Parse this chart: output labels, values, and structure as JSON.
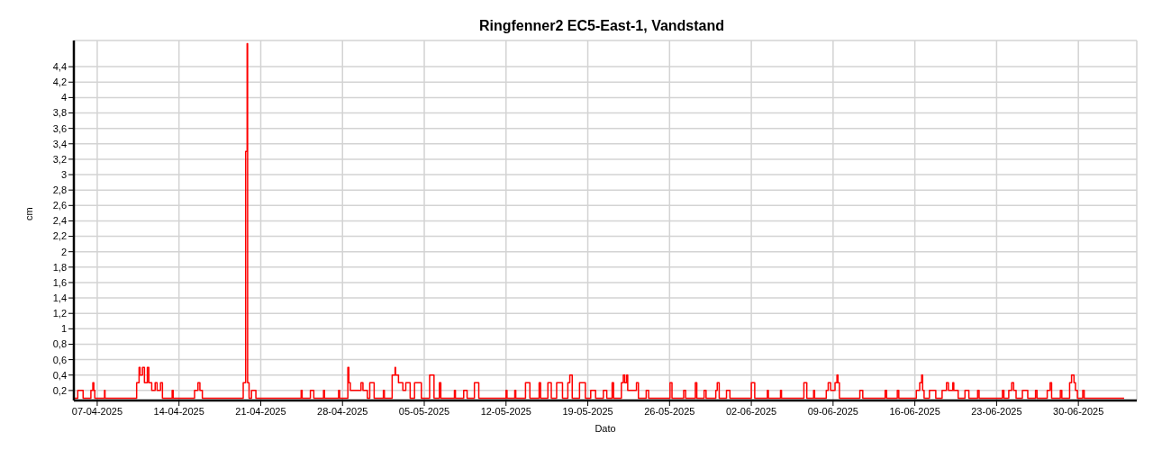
{
  "chart_data": {
    "type": "step",
    "title": "Ringfenner2 EC5-East-1, Vandstand",
    "xlabel": "Dato",
    "ylabel": "cm",
    "grid": true,
    "xlim": [
      "2025-04-05",
      "2025-07-05"
    ],
    "xticks": [
      {
        "value": "2025-04-07",
        "label": "07-04-2025"
      },
      {
        "value": "2025-04-14",
        "label": "14-04-2025"
      },
      {
        "value": "2025-04-21",
        "label": "21-04-2025"
      },
      {
        "value": "2025-04-28",
        "label": "28-04-2025"
      },
      {
        "value": "2025-05-05",
        "label": "05-05-2025"
      },
      {
        "value": "2025-05-12",
        "label": "12-05-2025"
      },
      {
        "value": "2025-05-19",
        "label": "19-05-2025"
      },
      {
        "value": "2025-05-26",
        "label": "26-05-2025"
      },
      {
        "value": "2025-06-02",
        "label": "02-06-2025"
      },
      {
        "value": "2025-06-09",
        "label": "09-06-2025"
      },
      {
        "value": "2025-06-16",
        "label": "16-06-2025"
      },
      {
        "value": "2025-06-23",
        "label": "23-06-2025"
      },
      {
        "value": "2025-06-30",
        "label": "30-06-2025"
      }
    ],
    "ylim": [
      0.07,
      4.74
    ],
    "yticks": [
      {
        "value": 0.2,
        "label": "0,2"
      },
      {
        "value": 0.4,
        "label": "0,4"
      },
      {
        "value": 0.6,
        "label": "0,6"
      },
      {
        "value": 0.8,
        "label": "0,8"
      },
      {
        "value": 1,
        "label": "1"
      },
      {
        "value": 1.2,
        "label": "1,2"
      },
      {
        "value": 1.4,
        "label": "1,4"
      },
      {
        "value": 1.6,
        "label": "1,6"
      },
      {
        "value": 1.8,
        "label": "1,8"
      },
      {
        "value": 2,
        "label": "2"
      },
      {
        "value": 2.2,
        "label": "2,2"
      },
      {
        "value": 2.4,
        "label": "2,4"
      },
      {
        "value": 2.6,
        "label": "2,6"
      },
      {
        "value": 2.8,
        "label": "2,8"
      },
      {
        "value": 3,
        "label": "3"
      },
      {
        "value": 3.2,
        "label": "3,2"
      },
      {
        "value": 3.4,
        "label": "3,4"
      },
      {
        "value": 3.6,
        "label": "3,6"
      },
      {
        "value": 3.8,
        "label": "3,8"
      },
      {
        "value": 4,
        "label": "4"
      },
      {
        "value": 4.2,
        "label": "4,2"
      },
      {
        "value": 4.4,
        "label": "4,4"
      }
    ],
    "series": [
      {
        "color": "#ff0000",
        "x": [
          "2025-04-05T00:00",
          "2025-04-05T08:00",
          "2025-04-05T19:00",
          "2025-04-06T11:00",
          "2025-04-06T15:00",
          "2025-04-06T17:00",
          "2025-04-06T19:00",
          "2025-04-07T15:00",
          "2025-04-07T16:00",
          "2025-04-10T09:00",
          "2025-04-10T14:00",
          "2025-04-10T16:00",
          "2025-04-10T21:00",
          "2025-04-11T01:00",
          "2025-04-11T07:00",
          "2025-04-11T10:00",
          "2025-04-11T16:00",
          "2025-04-11T23:00",
          "2025-04-12T03:00",
          "2025-04-12T10:00",
          "2025-04-12T14:00",
          "2025-04-13T10:00",
          "2025-04-13T12:00",
          "2025-04-15T08:00",
          "2025-04-15T15:00",
          "2025-04-15T19:00",
          "2025-04-16T00:00",
          "2025-04-19T12:00",
          "2025-04-19T17:00",
          "2025-04-19T20:00",
          "2025-04-19T21:00",
          "2025-04-20T00:00",
          "2025-04-20T05:00",
          "2025-04-20T14:00",
          "2025-04-24T11:00",
          "2025-04-24T13:00",
          "2025-04-25T06:00",
          "2025-04-25T13:00",
          "2025-04-26T09:00",
          "2025-04-26T11:00",
          "2025-04-27T16:00",
          "2025-04-27T18:00",
          "2025-04-28T11:00",
          "2025-04-28T13:00",
          "2025-04-28T16:00",
          "2025-04-29T14:00",
          "2025-04-29T18:00",
          "2025-04-30T03:00",
          "2025-04-30T08:00",
          "2025-04-30T17:00",
          "2025-05-01T12:00",
          "2025-05-01T14:00",
          "2025-05-02T06:00",
          "2025-05-02T12:00",
          "2025-05-02T13:00",
          "2025-05-02T19:00",
          "2025-05-03T04:00",
          "2025-05-03T10:00",
          "2025-05-03T19:00",
          "2025-05-04T04:00",
          "2025-05-04T18:00",
          "2025-05-05T11:00",
          "2025-05-05T20:00",
          "2025-05-06T07:00",
          "2025-05-06T10:00",
          "2025-05-07T14:00",
          "2025-05-07T16:00",
          "2025-05-08T09:00",
          "2025-05-08T16:00",
          "2025-05-09T07:00",
          "2025-05-09T16:00",
          "2025-05-12T00:00",
          "2025-05-12T02:00",
          "2025-05-12T18:00",
          "2025-05-12T20:00",
          "2025-05-13T16:00",
          "2025-05-14T01:00",
          "2025-05-14T20:00",
          "2025-05-14T23:00",
          "2025-05-15T14:00",
          "2025-05-15T21:00",
          "2025-05-16T08:00",
          "2025-05-16T20:00",
          "2025-05-17T07:00",
          "2025-05-17T11:00",
          "2025-05-17T16:00",
          "2025-05-18T07:00",
          "2025-05-18T19:00",
          "2025-05-19T06:00",
          "2025-05-19T16:00",
          "2025-05-20T08:00",
          "2025-05-20T15:00",
          "2025-05-21T02:00",
          "2025-05-21T05:00",
          "2025-05-21T21:00",
          "2025-05-22T01:00",
          "2025-05-22T04:00",
          "2025-05-22T08:00",
          "2025-05-22T10:00",
          "2025-05-22T17:00",
          "2025-05-23T04:00",
          "2025-05-23T08:00",
          "2025-05-24T00:00",
          "2025-05-24T05:00",
          "2025-05-26T01:00",
          "2025-05-26T05:00",
          "2025-05-27T05:00",
          "2025-05-27T09:00",
          "2025-05-28T05:00",
          "2025-05-28T08:00",
          "2025-05-28T23:00",
          "2025-05-29T03:00",
          "2025-05-29T23:00",
          "2025-05-30T02:00",
          "2025-05-30T06:00",
          "2025-05-30T21:00",
          "2025-05-31T04:00",
          "2025-06-02T00:00",
          "2025-06-02T07:00",
          "2025-06-03T09:00",
          "2025-06-03T11:00",
          "2025-06-04T12:00",
          "2025-06-04T14:00",
          "2025-06-06T12:00",
          "2025-06-06T18:00",
          "2025-06-07T08:00",
          "2025-06-07T10:00",
          "2025-06-08T10:00",
          "2025-06-08T14:00",
          "2025-06-08T19:00",
          "2025-06-09T04:00",
          "2025-06-09T08:00",
          "2025-06-09T10:00",
          "2025-06-09T13:00",
          "2025-06-11T07:00",
          "2025-06-11T13:00",
          "2025-06-13T11:00",
          "2025-06-13T14:00",
          "2025-06-14T12:00",
          "2025-06-14T15:00",
          "2025-06-16T03:00",
          "2025-06-16T10:00",
          "2025-06-16T14:00",
          "2025-06-16T16:00",
          "2025-06-16T19:00",
          "2025-06-17T06:00",
          "2025-06-17T19:00",
          "2025-06-18T08:00",
          "2025-06-18T17:00",
          "2025-06-18T21:00",
          "2025-06-19T06:00",
          "2025-06-19T08:00",
          "2025-06-19T17:00",
          "2025-06-20T07:00",
          "2025-06-20T15:00",
          "2025-06-21T09:00",
          "2025-06-21T12:00",
          "2025-06-23T12:00",
          "2025-06-23T15:00",
          "2025-06-24T01:00",
          "2025-06-24T07:00",
          "2025-06-24T11:00",
          "2025-06-24T16:00",
          "2025-06-25T05:00",
          "2025-06-25T16:00",
          "2025-06-26T08:00",
          "2025-06-26T11:00",
          "2025-06-27T08:00",
          "2025-06-27T14:00",
          "2025-06-27T17:00",
          "2025-06-28T11:00",
          "2025-06-28T14:00",
          "2025-06-29T06:00",
          "2025-06-29T10:00",
          "2025-06-29T15:00",
          "2025-06-29T18:00",
          "2025-06-29T22:00",
          "2025-06-30T09:00",
          "2025-06-30T12:00",
          "2025-07-03T22:00"
        ],
        "values": [
          0.1,
          0.2,
          0.1,
          0.2,
          0.3,
          0.2,
          0.1,
          0.2,
          0.1,
          0.3,
          0.5,
          0.4,
          0.5,
          0.3,
          0.5,
          0.3,
          0.2,
          0.3,
          0.2,
          0.3,
          0.1,
          0.2,
          0.1,
          0.2,
          0.3,
          0.2,
          0.1,
          0.3,
          3.3,
          4.7,
          0.3,
          0.1,
          0.2,
          0.1,
          0.2,
          0.1,
          0.2,
          0.1,
          0.2,
          0.1,
          0.2,
          0.1,
          0.5,
          0.3,
          0.2,
          0.3,
          0.2,
          0.1,
          0.3,
          0.1,
          0.2,
          0.1,
          0.4,
          0.5,
          0.4,
          0.3,
          0.2,
          0.3,
          0.1,
          0.3,
          0.1,
          0.4,
          0.1,
          0.3,
          0.1,
          0.2,
          0.1,
          0.2,
          0.1,
          0.3,
          0.1,
          0.2,
          0.1,
          0.2,
          0.1,
          0.3,
          0.1,
          0.3,
          0.1,
          0.3,
          0.1,
          0.3,
          0.1,
          0.3,
          0.4,
          0.1,
          0.3,
          0.1,
          0.2,
          0.1,
          0.2,
          0.1,
          0.3,
          0.1,
          0.3,
          0.4,
          0.3,
          0.4,
          0.2,
          0.2,
          0.3,
          0.1,
          0.2,
          0.1,
          0.3,
          0.1,
          0.2,
          0.1,
          0.3,
          0.1,
          0.2,
          0.1,
          0.2,
          0.3,
          0.1,
          0.2,
          0.1,
          0.3,
          0.1,
          0.2,
          0.1,
          0.2,
          0.1,
          0.3,
          0.1,
          0.2,
          0.1,
          0.2,
          0.3,
          0.2,
          0.3,
          0.4,
          0.3,
          0.1,
          0.2,
          0.1,
          0.2,
          0.1,
          0.2,
          0.1,
          0.2,
          0.3,
          0.4,
          0.2,
          0.1,
          0.2,
          0.1,
          0.2,
          0.3,
          0.2,
          0.3,
          0.2,
          0.1,
          0.2,
          0.1,
          0.2,
          0.1,
          0.2,
          0.1,
          0.2,
          0.3,
          0.2,
          0.1,
          0.2,
          0.1,
          0.2,
          0.1,
          0.2,
          0.3,
          0.1,
          0.2,
          0.1,
          0.3,
          0.4,
          0.3,
          0.2,
          0.1,
          0.2,
          0.1,
          0.1
        ]
      }
    ]
  }
}
